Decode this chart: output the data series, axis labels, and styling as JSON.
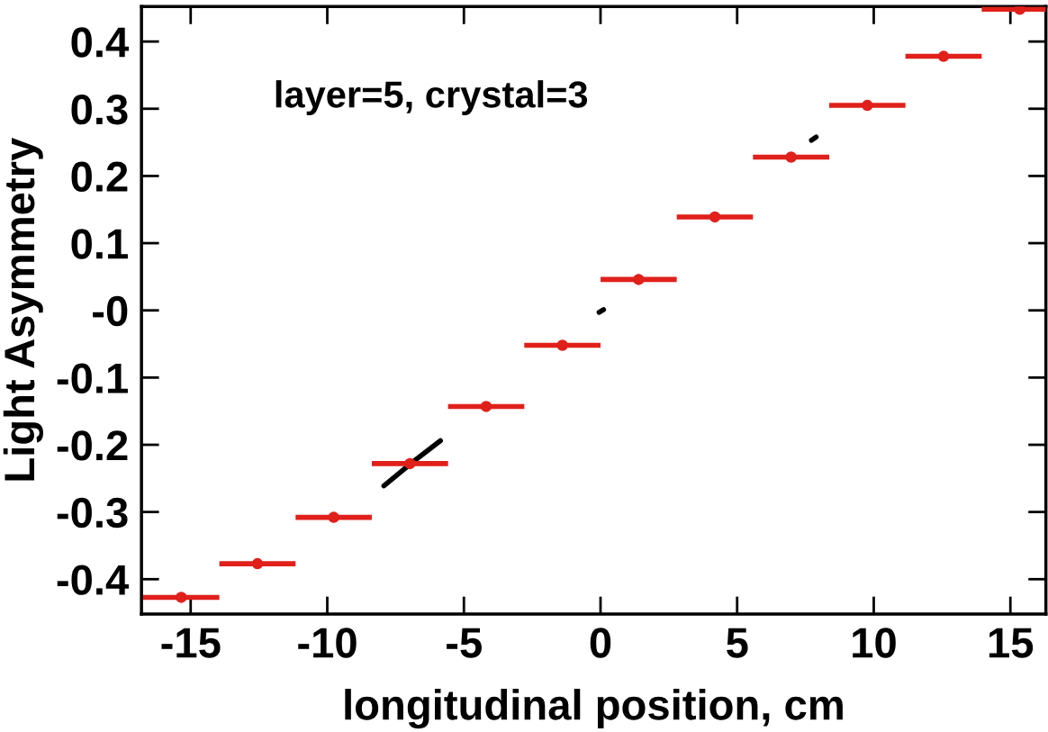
{
  "chart_data": {
    "type": "scatter",
    "xlabel": "longitudinal position, cm",
    "ylabel": "Light Asymmetry",
    "annotations": [
      "layer=5, crystal=3"
    ],
    "series": [
      {
        "type": "scatter",
        "marker": "circle",
        "color": "#e0201b",
        "x": [
          -15.345,
          -12.555,
          -9.765,
          -6.975,
          -4.185,
          -1.395,
          1.395,
          4.185,
          6.975,
          9.765,
          12.555,
          15.345
        ],
        "values": [
          -0.427,
          -0.377,
          -0.308,
          -0.228,
          -0.143,
          -0.052,
          0.046,
          0.139,
          0.228,
          0.305,
          0.378,
          0.448
        ],
        "xerrors": [
          1.395,
          1.395,
          1.395,
          1.395,
          1.395,
          1.395,
          1.395,
          1.395,
          1.395,
          1.395,
          1.395,
          [
            13.95,
            16.3
          ]
        ]
      },
      {
        "type": "line",
        "color": "#000000",
        "x": [
          -7.93,
          -6.82,
          -5.86
        ],
        "values": [
          -0.261,
          -0.224,
          -0.194
        ]
      },
      {
        "type": "line",
        "color": "#000000",
        "x": [
          -0.05,
          0.11
        ],
        "values": [
          -0.003,
          0.001
        ]
      },
      {
        "type": "line",
        "color": "#000000",
        "x": [
          7.72,
          7.89
        ],
        "values": [
          0.253,
          0.258
        ]
      }
    ],
    "marker": "none",
    "xlim": [
      -16.8,
      16.3
    ],
    "ylim": [
      -0.452,
      0.452
    ],
    "xticks": [
      -15,
      -10,
      -5,
      0,
      5,
      10,
      15
    ],
    "yticks": [
      {
        "value": -0.4,
        "label": "-0.4"
      },
      {
        "value": -0.3,
        "label": "-0.3"
      },
      {
        "value": -0.2,
        "label": "-0.2"
      },
      {
        "value": -0.1,
        "label": "-0.1"
      },
      {
        "value": 0,
        "label": "-0"
      },
      0.1,
      0.2,
      0.3,
      0.4
    ],
    "grid": false,
    "legend": false
  }
}
